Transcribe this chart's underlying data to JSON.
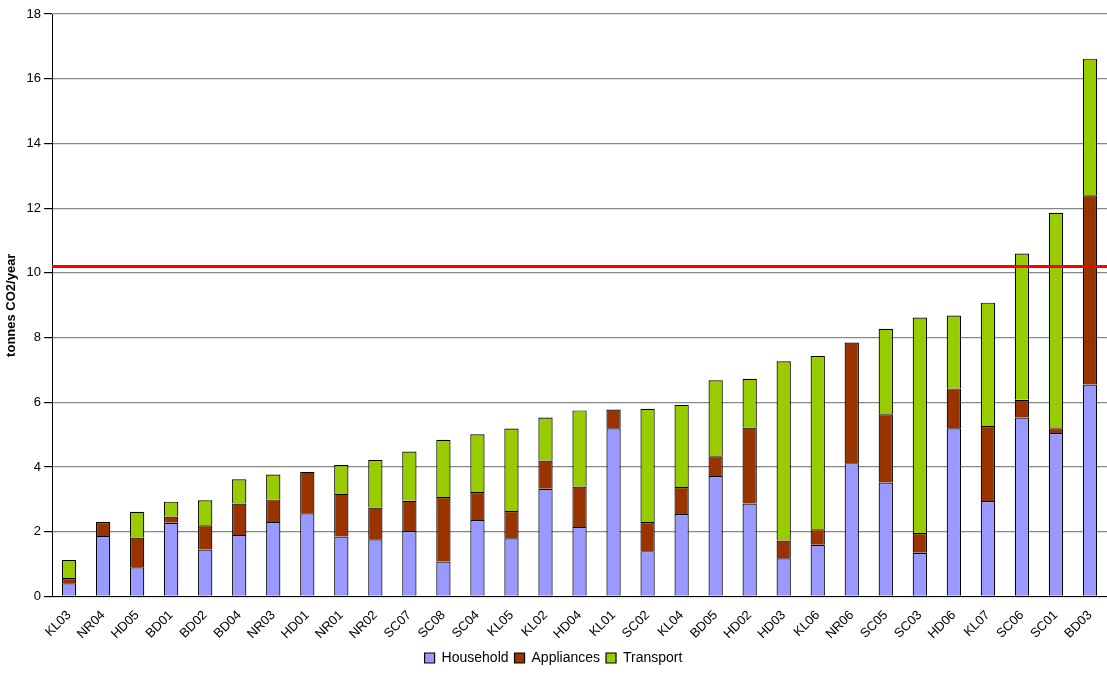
{
  "chart_data": {
    "type": "bar",
    "stacked": true,
    "ylabel": "tonnes CO2/year",
    "categories": [
      "KL03",
      "NR04",
      "HD05",
      "BD01",
      "BD02",
      "BD04",
      "NR03",
      "HD01",
      "NR01",
      "NR02",
      "SC07",
      "SC08",
      "SC04",
      "KL05",
      "KL02",
      "HD04",
      "KL01",
      "SC02",
      "KL04",
      "BD05",
      "HD02",
      "HD03",
      "KL06",
      "NR06",
      "SC05",
      "SC03",
      "HD06",
      "KL07",
      "SC06",
      "SC01",
      "BD03"
    ],
    "series": [
      {
        "name": "Household",
        "color": "#9999ff",
        "values": [
          0.41,
          1.87,
          0.9,
          2.28,
          1.45,
          1.9,
          2.3,
          2.57,
          1.85,
          1.77,
          2.02,
          1.08,
          2.36,
          1.8,
          3.33,
          2.15,
          5.2,
          1.4,
          2.55,
          3.72,
          2.87,
          1.18,
          1.6,
          4.12,
          3.52,
          1.35,
          5.2,
          2.95,
          5.53,
          5.05,
          6.55
        ]
      },
      {
        "name": "Appliances",
        "color": "#993300",
        "values": [
          0.16,
          0.43,
          0.92,
          0.19,
          0.75,
          0.97,
          0.7,
          1.28,
          1.32,
          0.98,
          0.94,
          1.99,
          0.87,
          0.84,
          0.87,
          1.25,
          0.58,
          0.9,
          0.83,
          0.61,
          2.35,
          0.55,
          0.48,
          3.73,
          2.11,
          0.61,
          1.23,
          2.32,
          0.55,
          0.15,
          5.85
        ]
      },
      {
        "name": "Transport",
        "color": "#99cc00",
        "values": [
          0.56,
          0,
          0.8,
          0.46,
          0.77,
          0.75,
          0.77,
          0,
          0.89,
          1.47,
          1.52,
          1.77,
          1.78,
          2.55,
          1.33,
          2.35,
          0,
          3.5,
          2.54,
          2.35,
          1.51,
          5.54,
          5.35,
          0,
          2.64,
          6.66,
          2.25,
          3.81,
          4.52,
          6.66,
          4.22
        ]
      }
    ],
    "ylim": [
      0,
      18
    ],
    "yticks": [
      0,
      2,
      4,
      6,
      8,
      10,
      12,
      14,
      16,
      18
    ],
    "grid": "y",
    "legend": "bottom",
    "ref_lines": [
      {
        "axis": "y",
        "value": 10.2,
        "color": "#ff0000"
      }
    ]
  }
}
